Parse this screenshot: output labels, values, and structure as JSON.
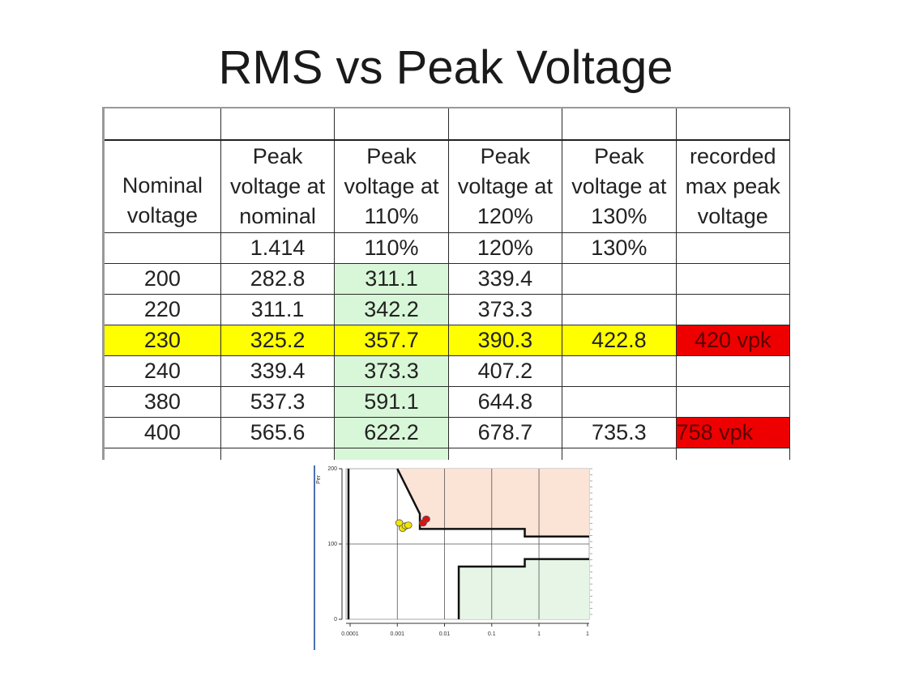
{
  "title": "RMS vs Peak Voltage",
  "table": {
    "headers": [
      [
        "Nominal",
        "voltage"
      ],
      [
        "Peak",
        "voltage at",
        "nominal"
      ],
      [
        "Peak",
        "voltage at",
        "110%"
      ],
      [
        "Peak",
        "voltage at",
        "120%"
      ],
      [
        "Peak",
        "voltage at",
        "130%"
      ],
      [
        "recorded",
        "max peak",
        "voltage"
      ]
    ],
    "factors": [
      "",
      "1.414",
      "110%",
      "120%",
      "130%",
      ""
    ],
    "rows": [
      [
        "200",
        "282.8",
        "311.1",
        "339.4",
        "",
        ""
      ],
      [
        "220",
        "311.1",
        "342.2",
        "373.3",
        "",
        ""
      ],
      [
        "230",
        "325.2",
        "357.7",
        "390.3",
        "422.8",
        "420 vpk"
      ],
      [
        "240",
        "339.4",
        "373.3",
        "407.2",
        "",
        ""
      ],
      [
        "380",
        "537.3",
        "591.1",
        "644.8",
        "",
        ""
      ],
      [
        "400",
        "565.6",
        "622.2",
        "678.7",
        "735.3",
        "758 vpk"
      ]
    ],
    "colors": {
      "green_column": "#d8f7d8",
      "highlight_row": "#ffff00",
      "recorded_cell": "#ee0000"
    }
  },
  "chart_data": {
    "type": "scatter",
    "title": "",
    "xlabel": "",
    "ylabel": "Per",
    "x_scale": "log",
    "xlim": [
      0.0001,
      1
    ],
    "ylim": [
      0,
      200
    ],
    "x_tick_labels": [
      "0.0001",
      "0.001",
      "0.01",
      "0.1",
      "1",
      "1"
    ],
    "y_tick_labels": [
      "0",
      "100",
      "200"
    ],
    "grid": true,
    "regions": [
      {
        "color": "#fbe3d6",
        "label": ""
      },
      {
        "color": "#e6f5e6",
        "label": ""
      }
    ],
    "series": [
      {
        "color": "#f2e600",
        "points": [
          [
            0.0011,
            128
          ],
          [
            0.0013,
            121
          ],
          [
            0.0015,
            124
          ],
          [
            0.0017,
            125
          ]
        ]
      },
      {
        "color": "#dd1111",
        "points": [
          [
            0.0035,
            128
          ],
          [
            0.0041,
            133
          ]
        ]
      }
    ]
  }
}
